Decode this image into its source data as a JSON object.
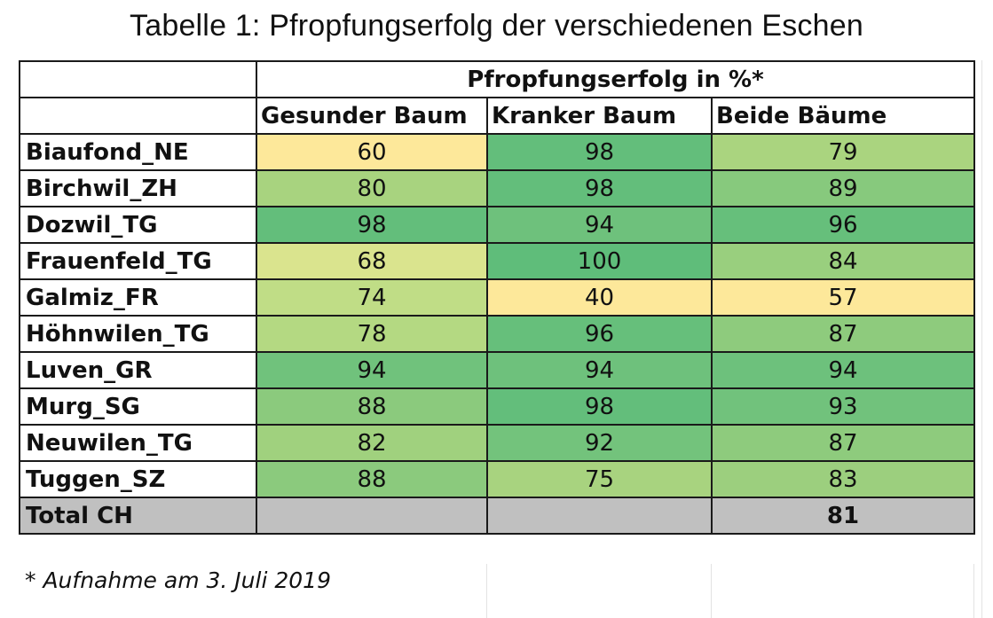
{
  "title": "Tabelle 1: Pfropfungserfolg der verschiedenen Eschen",
  "header": {
    "group_label": "Pfropfungserfolg in %*",
    "columns": [
      "Gesunder Baum",
      "Kranker Baum",
      "Beide Bäume"
    ]
  },
  "rows": [
    {
      "name": "Biaufond_NE",
      "values": [
        "60",
        "98",
        "79"
      ],
      "colors": [
        "#fde89a",
        "#63be7b",
        "#aad47f"
      ]
    },
    {
      "name": "Birchwil_ZH",
      "values": [
        "80",
        "98",
        "89"
      ],
      "colors": [
        "#a8d37f",
        "#63be7b",
        "#87c97d"
      ]
    },
    {
      "name": "Dozwil_TG",
      "values": [
        "98",
        "94",
        "96"
      ],
      "colors": [
        "#63be7b",
        "#6ec17c",
        "#66bf7b"
      ]
    },
    {
      "name": "Frauenfeld_TG",
      "values": [
        "68",
        "100",
        "84"
      ],
      "colors": [
        "#dae48e",
        "#5fbd7a",
        "#99cf7e"
      ]
    },
    {
      "name": "Galmiz_FR",
      "values": [
        "74",
        "40",
        "57"
      ],
      "colors": [
        "#c0dd86",
        "#fde89a",
        "#fde89a"
      ]
    },
    {
      "name": "Höhnwilen_TG",
      "values": [
        "78",
        "96",
        "87"
      ],
      "colors": [
        "#b4d982",
        "#66bf7b",
        "#8ecb7d"
      ]
    },
    {
      "name": "Luven_GR",
      "values": [
        "94",
        "94",
        "94"
      ],
      "colors": [
        "#70c27c",
        "#6ec17c",
        "#6dc17c"
      ]
    },
    {
      "name": "Murg_SG",
      "values": [
        "88",
        "98",
        "93"
      ],
      "colors": [
        "#8bca7d",
        "#63be7b",
        "#71c27c"
      ]
    },
    {
      "name": "Neuwilen_TG",
      "values": [
        "82",
        "92",
        "87"
      ],
      "colors": [
        "#a0d17e",
        "#73c37c",
        "#8ecb7d"
      ]
    },
    {
      "name": "Tuggen_SZ",
      "values": [
        "88",
        "75",
        "83"
      ],
      "colors": [
        "#8bca7d",
        "#a8d37f",
        "#9ccf7e"
      ]
    }
  ],
  "total": {
    "name": "Total CH",
    "value": "81"
  },
  "footnote": "* Aufnahme am 3. Juli 2019"
}
